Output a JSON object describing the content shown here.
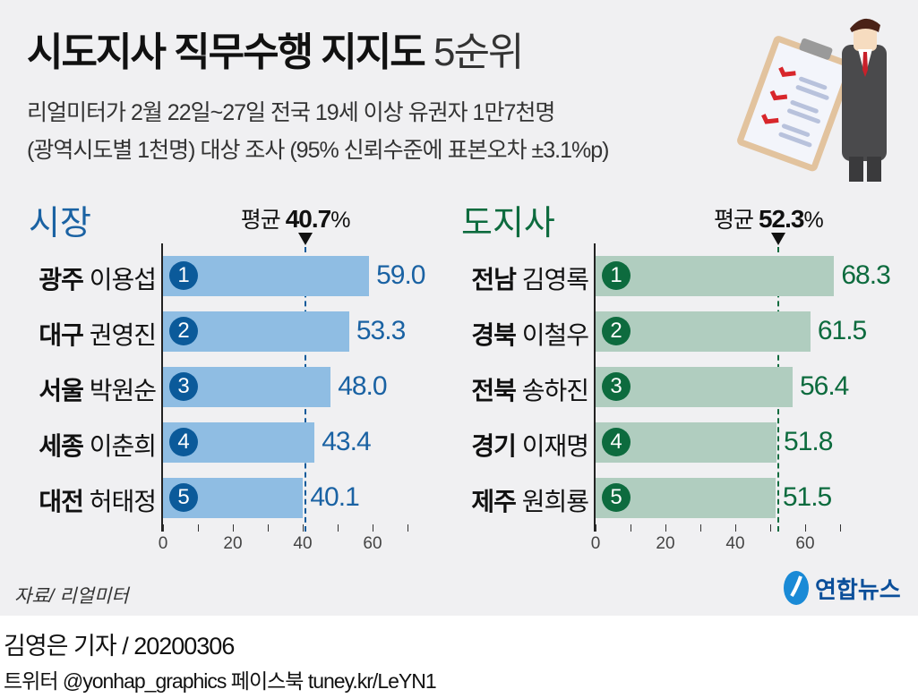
{
  "title": {
    "main": "시도지사 직무수행 지지도",
    "suffix": "5순위"
  },
  "subtitle": [
    "리얼미터가 2월 22일~27일 전국 19세 이상 유권자 1만7천명",
    "(광역시도별 1천명) 대상 조사 (95% 신뢰수준에 표본오차 ±3.1%p)"
  ],
  "chart_data": [
    {
      "type": "bar",
      "title": "시장",
      "average_label": "평균",
      "average": 40.7,
      "average_text": "40.7",
      "unit": "%",
      "regions": [
        "광주",
        "대구",
        "서울",
        "세종",
        "대전"
      ],
      "names": [
        "이용섭",
        "권영진",
        "박원순",
        "이춘희",
        "허태정"
      ],
      "ranks": [
        "1",
        "2",
        "3",
        "4",
        "5"
      ],
      "values": [
        59.0,
        53.3,
        48.0,
        43.4,
        40.1
      ],
      "value_labels": [
        "59.0",
        "53.3",
        "48.0",
        "43.4",
        "40.1"
      ],
      "xticks": [
        "0",
        "20",
        "40",
        "60"
      ],
      "xlim": [
        0,
        70
      ],
      "colors": {
        "bar": "#8fbde3",
        "accent": "#0b5a9a",
        "text": "#1a62a3",
        "title": "#1a62a3"
      }
    },
    {
      "type": "bar",
      "title": "도지사",
      "average_label": "평균",
      "average": 52.3,
      "average_text": "52.3",
      "unit": "%",
      "regions": [
        "전남",
        "경북",
        "전북",
        "경기",
        "제주"
      ],
      "names": [
        "김영록",
        "이철우",
        "송하진",
        "이재명",
        "원희룡"
      ],
      "ranks": [
        "1",
        "2",
        "3",
        "4",
        "5"
      ],
      "values": [
        68.3,
        61.5,
        56.4,
        51.8,
        51.5
      ],
      "value_labels": [
        "68.3",
        "61.5",
        "56.4",
        "51.8",
        "51.5"
      ],
      "xticks": [
        "0",
        "20",
        "40",
        "60"
      ],
      "xlim": [
        0,
        70
      ],
      "colors": {
        "bar": "#b0cdbf",
        "accent": "#0d6b3e",
        "text": "#0d6b3e",
        "title": "#0d6b3e"
      }
    }
  ],
  "source": "자료/ 리얼미터",
  "logo": "연합뉴스",
  "byline": "김영은 기자 / 20200306",
  "social": "트위터 @yonhap_graphics  페이스북 tuney.kr/LeYN1"
}
